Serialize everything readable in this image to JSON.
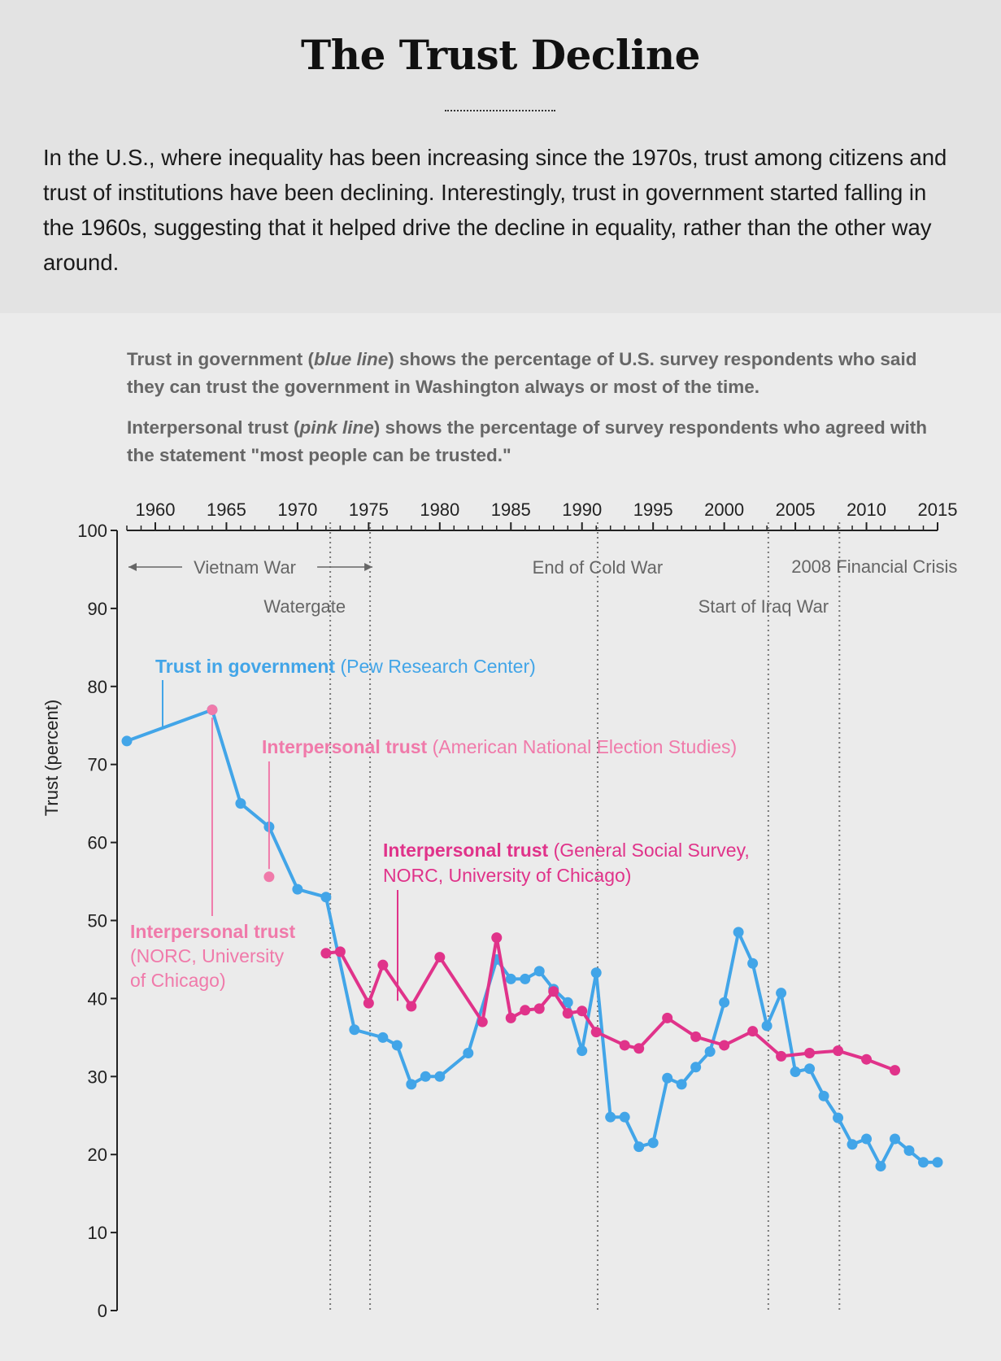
{
  "title": "The Trust Decline",
  "intro": "In the U.S., where inequality has been increasing since the 1970s, trust among citizens and trust of institutions have been declining. Interestingly, trust in government started falling in the 1960s, suggesting that it helped drive the decline in equality, rather than the other way around.",
  "notes": {
    "gov_a": "Trust in government (",
    "gov_em": "blue line",
    "gov_b": ") shows the percentage of U.S. survey respondents who said they can trust the government in Washington always or most of the time.",
    "inter_a": "Interpersonal trust (",
    "inter_em": "pink line",
    "inter_b": ") shows the percentage of survey respondents who agreed with the statement \"most people can be trusted.\""
  },
  "chart_data": {
    "type": "line",
    "ylabel": "Trust (percent)",
    "xlim": [
      1958,
      2015
    ],
    "ylim": [
      0,
      100
    ],
    "x_ticks": [
      1960,
      1965,
      1970,
      1975,
      1980,
      1985,
      1990,
      1995,
      2000,
      2005,
      2010,
      2015
    ],
    "y_ticks": [
      0,
      10,
      20,
      30,
      40,
      50,
      60,
      70,
      80,
      90,
      100
    ],
    "colors": {
      "gov": "#42a5e8",
      "anes": "#f07aaa",
      "gss": "#e0338a",
      "annotation": "#666666",
      "event_line": "#777777"
    },
    "events": [
      {
        "year": 1972.3,
        "label": ""
      },
      {
        "year": 1975.1,
        "label": "Watergate"
      },
      {
        "year": 1991.1,
        "label": "End of Cold War"
      },
      {
        "year": 2003.1,
        "label": "Start of Iraq War"
      },
      {
        "year": 2008.1,
        "label": "2008 Financial Crisis"
      }
    ],
    "vietnam_label": "Vietnam War",
    "vietnam_range": [
      1958,
      1975.5
    ],
    "series": [
      {
        "id": "gov",
        "label_bold": "Trust in government",
        "label_rest": " (Pew Research Center)",
        "color": "#42a5e8",
        "points": [
          [
            1958,
            73
          ],
          [
            1964,
            77
          ],
          [
            1966,
            65
          ],
          [
            1968,
            62
          ],
          [
            1970,
            54
          ],
          [
            1972,
            53
          ],
          [
            1974,
            36
          ],
          [
            1976,
            35
          ],
          [
            1977,
            34
          ],
          [
            1978,
            29
          ],
          [
            1979,
            30
          ],
          [
            1980,
            30
          ],
          [
            1982,
            33
          ],
          [
            1984,
            45
          ],
          [
            1985,
            42.5
          ],
          [
            1986,
            42.5
          ],
          [
            1987,
            43.5
          ],
          [
            1988,
            41.2
          ],
          [
            1989,
            39.5
          ],
          [
            1990,
            33.3
          ],
          [
            1991,
            43.3
          ],
          [
            1992,
            24.8
          ],
          [
            1993,
            24.8
          ],
          [
            1994,
            21
          ],
          [
            1995,
            21.5
          ],
          [
            1996,
            29.8
          ],
          [
            1997,
            29
          ],
          [
            1998,
            31.2
          ],
          [
            1999,
            33.2
          ],
          [
            2000,
            39.5
          ],
          [
            2001,
            48.5
          ],
          [
            2002,
            44.5
          ],
          [
            2003,
            36.5
          ],
          [
            2004,
            40.7
          ],
          [
            2005,
            30.6
          ],
          [
            2006,
            31
          ],
          [
            2007,
            27.5
          ],
          [
            2008,
            24.7
          ],
          [
            2009,
            21.3
          ],
          [
            2010,
            22
          ],
          [
            2011,
            18.5
          ],
          [
            2012,
            22
          ],
          [
            2013,
            20.5
          ],
          [
            2014,
            19
          ],
          [
            2015,
            19
          ]
        ]
      },
      {
        "id": "anes",
        "label_bold": "Interpersonal trust",
        "label_rest": " (American National Election Studies)",
        "color": "#f07aaa",
        "points": [
          [
            1964,
            77
          ],
          [
            1968,
            55.6
          ]
        ]
      },
      {
        "id": "gss",
        "label_bold": "Interpersonal trust",
        "label_rest": " (General Social Survey,",
        "label_line2": "NORC, University of Chicago)",
        "color": "#e0338a",
        "points": [
          [
            1972,
            45.8
          ],
          [
            1973,
            46
          ],
          [
            1975,
            39.4
          ],
          [
            1976,
            44.3
          ],
          [
            1978,
            39
          ],
          [
            1980,
            45.3
          ],
          [
            1983,
            37
          ],
          [
            1984,
            47.8
          ],
          [
            1985,
            37.5
          ],
          [
            1986,
            38.5
          ],
          [
            1987,
            38.7
          ],
          [
            1988,
            40.9
          ],
          [
            1989,
            38.1
          ],
          [
            1990,
            38.4
          ],
          [
            1991,
            35.7
          ],
          [
            1993,
            34
          ],
          [
            1994,
            33.6
          ],
          [
            1996,
            37.5
          ],
          [
            1998,
            35.1
          ],
          [
            2000,
            34
          ],
          [
            2002,
            35.8
          ],
          [
            2004,
            32.6
          ],
          [
            2006,
            33
          ],
          [
            2008,
            33.3
          ],
          [
            2010,
            32.2
          ],
          [
            2012,
            30.8
          ]
        ]
      },
      {
        "id": "norc1960",
        "label_bold": "Interpersonal trust",
        "label_rest_lines": [
          "(NORC, University",
          "of Chicago)"
        ],
        "color": "#f07aaa",
        "points": []
      }
    ]
  }
}
